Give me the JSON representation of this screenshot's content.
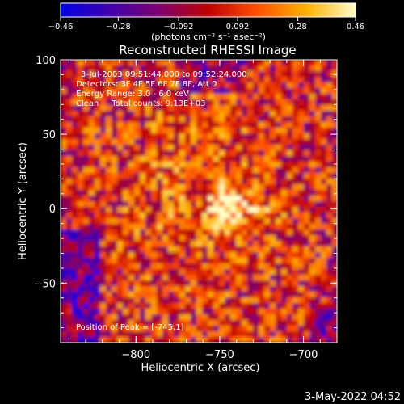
{
  "chart_data": {
    "type": "heatmap",
    "title": "Reconstructed RHESSI Image",
    "xlabel": "Heliocentric X (arcsec)",
    "ylabel": "Heliocentric Y (arcsec)",
    "xlim": [
      -845,
      -680
    ],
    "ylim": [
      -90,
      100
    ],
    "x_ticks": [
      {
        "value": -800,
        "label": "−800"
      },
      {
        "value": -750,
        "label": "−750"
      },
      {
        "value": -700,
        "label": "−700"
      }
    ],
    "y_ticks": [
      {
        "value": 100,
        "label": "100"
      },
      {
        "value": 50,
        "label": "50"
      },
      {
        "value": 0,
        "label": "0"
      },
      {
        "value": -50,
        "label": "−50"
      }
    ],
    "colorbar": {
      "range": [
        -0.46,
        0.46
      ],
      "ticks": [
        {
          "value": -0.46,
          "label": "−0.46"
        },
        {
          "value": -0.28,
          "label": "−0.28"
        },
        {
          "value": -0.092,
          "label": "−0.092"
        },
        {
          "value": 0.092,
          "label": "0.092"
        },
        {
          "value": 0.28,
          "label": "0.28"
        },
        {
          "value": 0.46,
          "label": "0.46"
        }
      ],
      "unit_label": "(photons cm⁻² s⁻¹ asec⁻²)",
      "stops": [
        "#0000e6",
        "#4000b0",
        "#800070",
        "#c00000",
        "#ff5000",
        "#ffb000",
        "#ffffc8"
      ]
    },
    "peak": {
      "x": -745,
      "y": 1,
      "value": 0.46
    },
    "legend_lines": [
      "3-Jul-2003 09:51:44.000 to 09:52:24.000",
      "Detectors: 3F 4F 5F 6F 7F 8F, Att 0",
      "Energy Range: 3.0 - 6.0 keV",
      "Clean     Total counts: 9.13E+03"
    ],
    "peak_label": "Position of Peak = [-745,1]"
  },
  "footer_date": "3-May-2022 04:52"
}
